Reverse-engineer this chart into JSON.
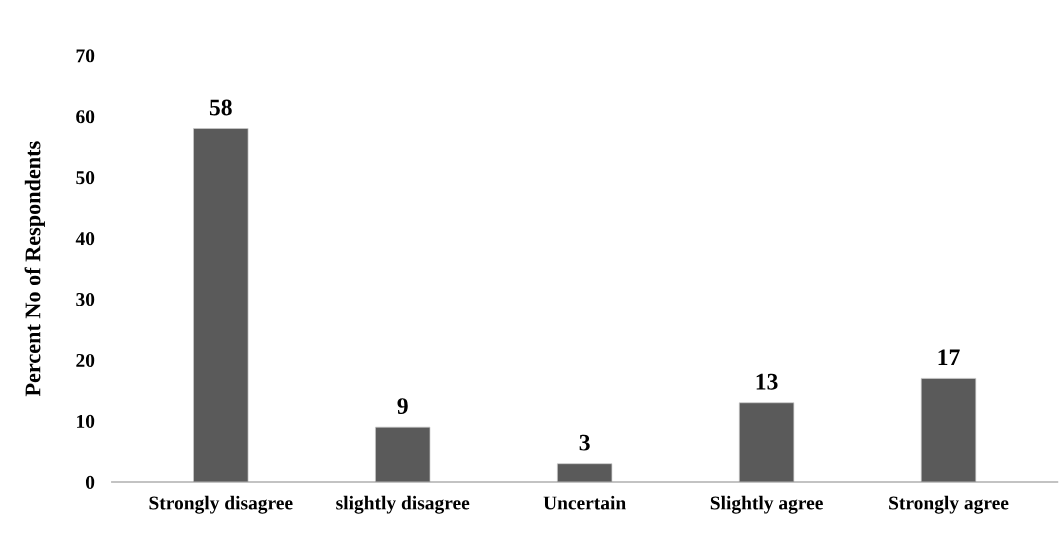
{
  "chart_data": {
    "type": "bar",
    "ylabel": "Percent No of Respondents",
    "categories": [
      "Strongly disagree",
      "slightly disagree",
      "Uncertain",
      "Slightly agree",
      "Strongly agree"
    ],
    "values": [
      58,
      9,
      3,
      13,
      17
    ],
    "color": "#5a5a5a",
    "data_labels": true,
    "ylim": [
      0,
      70
    ],
    "yticks": [
      0,
      10,
      20,
      30,
      40,
      50,
      60,
      70
    ],
    "grid": false,
    "legend": false
  }
}
